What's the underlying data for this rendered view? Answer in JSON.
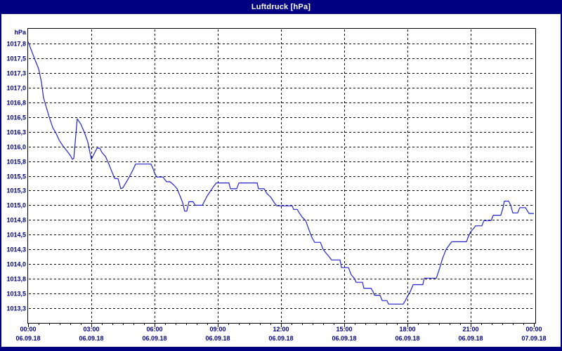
{
  "window": {
    "title_bar": {
      "title": "Luftdruck [hPa]"
    }
  },
  "colors": {
    "frame_navy": "#000080",
    "plot_background": "#ffffff",
    "title_text": "#ffffff",
    "axis_text": "#000080",
    "grid": "#000000",
    "line": "#2222cc"
  },
  "chart_data": {
    "type": "line",
    "title": "Luftdruck [hPa]",
    "ylabel": "hPa",
    "xlabel": "",
    "grid": "dashed",
    "legend": "none",
    "ylim": [
      1013.0,
      1018.0
    ],
    "x_range_hours": [
      0,
      24
    ],
    "y_axis": {
      "unit_label": "hPa",
      "ticks": [
        {
          "label": "1017,8",
          "value": 1017.75
        },
        {
          "label": "1017,5",
          "value": 1017.5
        },
        {
          "label": "1017,3",
          "value": 1017.25
        },
        {
          "label": "1017,0",
          "value": 1017.0
        },
        {
          "label": "1016,8",
          "value": 1016.75
        },
        {
          "label": "1016,5",
          "value": 1016.5
        },
        {
          "label": "1016,3",
          "value": 1016.25
        },
        {
          "label": "1016,0",
          "value": 1016.0
        },
        {
          "label": "1015,8",
          "value": 1015.75
        },
        {
          "label": "1015,5",
          "value": 1015.5
        },
        {
          "label": "1015,3",
          "value": 1015.25
        },
        {
          "label": "1015,0",
          "value": 1015.0
        },
        {
          "label": "1014,8",
          "value": 1014.75
        },
        {
          "label": "1014,5",
          "value": 1014.5
        },
        {
          "label": "1014,3",
          "value": 1014.25
        },
        {
          "label": "1014,0",
          "value": 1014.0
        },
        {
          "label": "1013,8",
          "value": 1013.75
        },
        {
          "label": "1013,5",
          "value": 1013.5
        },
        {
          "label": "1013,3",
          "value": 1013.25
        }
      ]
    },
    "x_axis": {
      "minor_tick_interval_hours": 0.5,
      "major_tick_interval_hours": 3,
      "ticks": [
        {
          "hour": 0,
          "time": "00:00",
          "date": "06.09.18"
        },
        {
          "hour": 3,
          "time": "03:00",
          "date": "06.09.18"
        },
        {
          "hour": 6,
          "time": "06:00",
          "date": "06.09.18"
        },
        {
          "hour": 9,
          "time": "09:00",
          "date": "06.09.18"
        },
        {
          "hour": 12,
          "time": "12:00",
          "date": "06.09.18"
        },
        {
          "hour": 15,
          "time": "15:00",
          "date": "06.09.18"
        },
        {
          "hour": 18,
          "time": "18:00",
          "date": "06.09.18"
        },
        {
          "hour": 21,
          "time": "21:00",
          "date": "06.09.18"
        },
        {
          "hour": 24,
          "time": "00:00",
          "date": "07.09.18"
        }
      ]
    },
    "series": [
      {
        "name": "Luftdruck",
        "unit": "hPa",
        "points": [
          [
            0,
            1017.78
          ],
          [
            0.17,
            1017.62
          ],
          [
            0.33,
            1017.47
          ],
          [
            0.5,
            1017.32
          ],
          [
            0.63,
            1017.1
          ],
          [
            0.73,
            1016.83
          ],
          [
            1,
            1016.5
          ],
          [
            1.17,
            1016.32
          ],
          [
            1.33,
            1016.22
          ],
          [
            1.5,
            1016.09
          ],
          [
            1.67,
            1016.0
          ],
          [
            1.83,
            1015.93
          ],
          [
            2,
            1015.85
          ],
          [
            2.1,
            1015.78
          ],
          [
            2.17,
            1015.8
          ],
          [
            2.33,
            1016.47
          ],
          [
            2.5,
            1016.38
          ],
          [
            2.67,
            1016.24
          ],
          [
            2.83,
            1016.08
          ],
          [
            3,
            1015.78
          ],
          [
            3.17,
            1015.9
          ],
          [
            3.27,
            1015.97
          ],
          [
            3.4,
            1015.97
          ],
          [
            3.5,
            1015.9
          ],
          [
            3.67,
            1015.83
          ],
          [
            3.83,
            1015.7
          ],
          [
            4,
            1015.55
          ],
          [
            4.1,
            1015.46
          ],
          [
            4.27,
            1015.45
          ],
          [
            4.4,
            1015.28
          ],
          [
            4.5,
            1015.3
          ],
          [
            4.67,
            1015.4
          ],
          [
            4.83,
            1015.5
          ],
          [
            5,
            1015.62
          ],
          [
            5.1,
            1015.7
          ],
          [
            5.83,
            1015.7
          ],
          [
            5.93,
            1015.62
          ],
          [
            6,
            1015.55
          ],
          [
            6.1,
            1015.48
          ],
          [
            6.4,
            1015.48
          ],
          [
            6.57,
            1015.4
          ],
          [
            6.73,
            1015.4
          ],
          [
            6.9,
            1015.35
          ],
          [
            7.07,
            1015.28
          ],
          [
            7.33,
            1015.05
          ],
          [
            7.43,
            1014.9
          ],
          [
            7.53,
            1014.9
          ],
          [
            7.63,
            1015.06
          ],
          [
            7.83,
            1015.06
          ],
          [
            7.93,
            1015.0
          ],
          [
            8.27,
            1015.0
          ],
          [
            8.37,
            1015.07
          ],
          [
            8.5,
            1015.16
          ],
          [
            8.67,
            1015.25
          ],
          [
            8.8,
            1015.32
          ],
          [
            8.93,
            1015.38
          ],
          [
            9.53,
            1015.38
          ],
          [
            9.6,
            1015.28
          ],
          [
            9.9,
            1015.28
          ],
          [
            10,
            1015.38
          ],
          [
            10.87,
            1015.38
          ],
          [
            10.93,
            1015.28
          ],
          [
            11.2,
            1015.28
          ],
          [
            11.33,
            1015.2
          ],
          [
            11.53,
            1015.13
          ],
          [
            11.67,
            1015.05
          ],
          [
            11.8,
            1014.99
          ],
          [
            12.53,
            1014.99
          ],
          [
            12.6,
            1014.93
          ],
          [
            12.77,
            1014.93
          ],
          [
            12.87,
            1014.87
          ],
          [
            13,
            1014.8
          ],
          [
            13.17,
            1014.74
          ],
          [
            13.33,
            1014.58
          ],
          [
            13.47,
            1014.45
          ],
          [
            13.6,
            1014.37
          ],
          [
            13.87,
            1014.37
          ],
          [
            14,
            1014.25
          ],
          [
            14.13,
            1014.19
          ],
          [
            14.27,
            1014.13
          ],
          [
            14.4,
            1014.07
          ],
          [
            14.8,
            1014.07
          ],
          [
            14.87,
            1013.94
          ],
          [
            15.2,
            1013.94
          ],
          [
            15.33,
            1013.82
          ],
          [
            15.47,
            1013.76
          ],
          [
            15.57,
            1013.69
          ],
          [
            15.87,
            1013.69
          ],
          [
            15.93,
            1013.59
          ],
          [
            16.27,
            1013.59
          ],
          [
            16.37,
            1013.53
          ],
          [
            16.43,
            1013.47
          ],
          [
            16.7,
            1013.47
          ],
          [
            16.8,
            1013.38
          ],
          [
            17.03,
            1013.38
          ],
          [
            17.1,
            1013.32
          ],
          [
            17.8,
            1013.32
          ],
          [
            17.9,
            1013.38
          ],
          [
            18,
            1013.45
          ],
          [
            18.13,
            1013.53
          ],
          [
            18.27,
            1013.65
          ],
          [
            18.73,
            1013.65
          ],
          [
            18.8,
            1013.76
          ],
          [
            19.37,
            1013.76
          ],
          [
            19.5,
            1013.9
          ],
          [
            19.67,
            1014.1
          ],
          [
            19.83,
            1014.25
          ],
          [
            20,
            1014.33
          ],
          [
            20.1,
            1014.38
          ],
          [
            20.8,
            1014.38
          ],
          [
            20.87,
            1014.45
          ],
          [
            21,
            1014.55
          ],
          [
            21.13,
            1014.6
          ],
          [
            21.23,
            1014.65
          ],
          [
            21.53,
            1014.65
          ],
          [
            21.63,
            1014.74
          ],
          [
            21.97,
            1014.74
          ],
          [
            22.07,
            1014.83
          ],
          [
            22.43,
            1014.83
          ],
          [
            22.53,
            1014.95
          ],
          [
            22.6,
            1015.07
          ],
          [
            22.8,
            1015.07
          ],
          [
            22.9,
            1015.0
          ],
          [
            23,
            1014.87
          ],
          [
            23.23,
            1014.87
          ],
          [
            23.33,
            1014.96
          ],
          [
            23.6,
            1014.96
          ],
          [
            23.7,
            1014.9
          ],
          [
            23.77,
            1014.86
          ],
          [
            24,
            1014.86
          ]
        ]
      }
    ]
  }
}
